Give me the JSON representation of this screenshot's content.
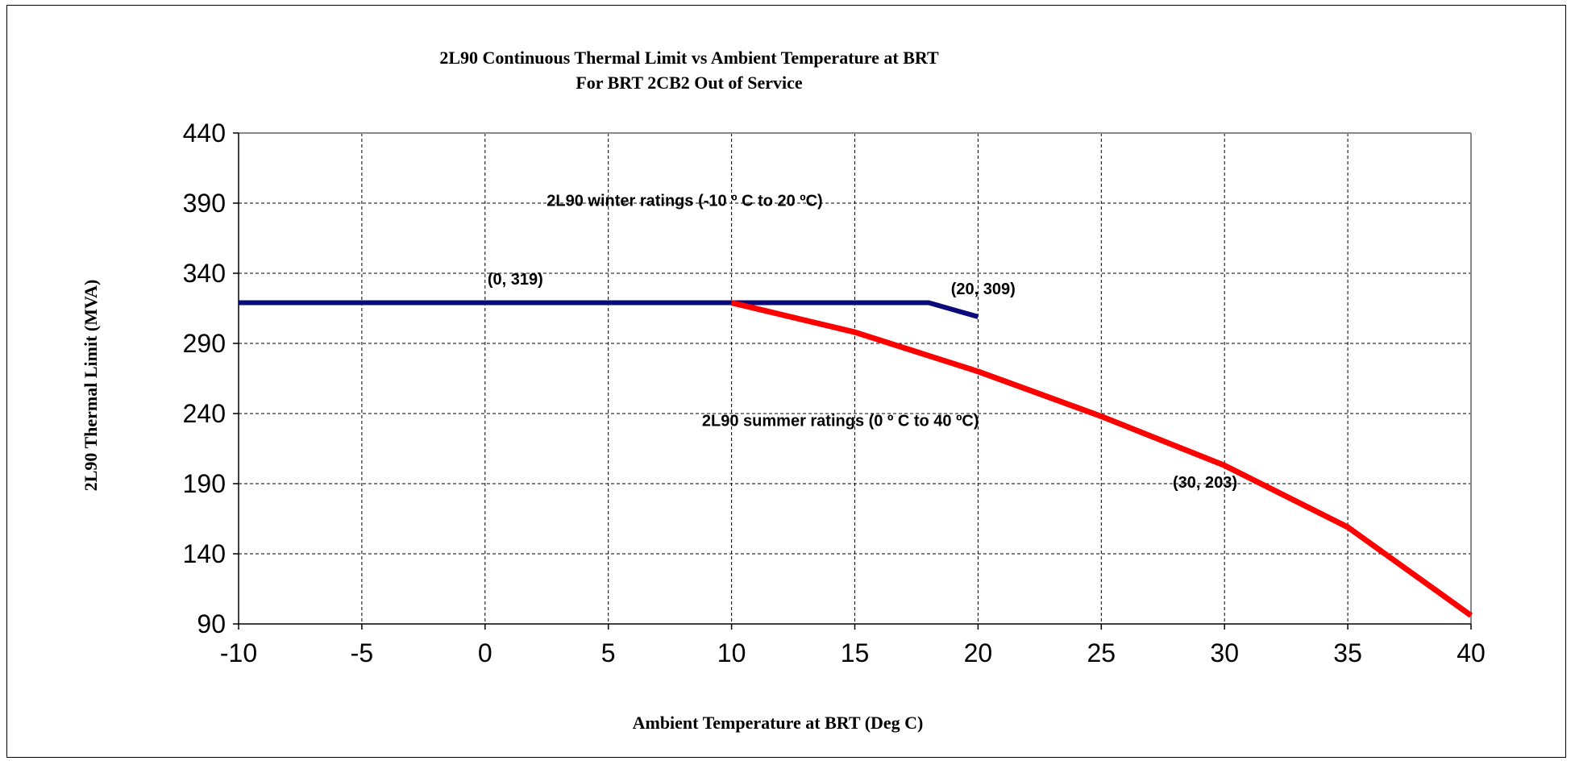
{
  "chart_data": {
    "type": "line",
    "title": "2L90 Continuous Thermal Limit vs Ambient Temperature at BRT",
    "subtitle": "For BRT 2CB2 Out of Service",
    "xlabel": "Ambient  Temperature  at BRT (Deg C)",
    "ylabel": "2L90  Thermal  Limit  (MVA)",
    "xlim": [
      -10,
      40
    ],
    "ylim": [
      90,
      440
    ],
    "xticks": [
      -10,
      -5,
      0,
      5,
      10,
      15,
      20,
      25,
      30,
      35,
      40
    ],
    "yticks": [
      90,
      140,
      190,
      240,
      290,
      340,
      390,
      440
    ],
    "grid": true,
    "series": [
      {
        "color": "#0a0a7a",
        "points": [
          [
            -10,
            319
          ],
          [
            18,
            319
          ],
          [
            20,
            309
          ]
        ]
      },
      {
        "color": "#ff0000",
        "points": [
          [
            10,
            319
          ],
          [
            15,
            298
          ],
          [
            20,
            270
          ],
          [
            25,
            238
          ],
          [
            30,
            203
          ],
          [
            35,
            159
          ],
          [
            40,
            96
          ]
        ]
      }
    ],
    "annotations": [
      {
        "text": "2L90 winter ratings (-10 º C to 20 ºC)",
        "x": 2.5,
        "y": 388
      },
      {
        "text": "(0, 319)",
        "x": 0.1,
        "y": 332
      },
      {
        "text": "(20,  309)",
        "x": 18.9,
        "y": 325
      },
      {
        "text": "2L90 summer ratings (0 º C to 40 ºC)",
        "x": 8.8,
        "y": 231
      },
      {
        "text": "(30,  203)",
        "x": 27.9,
        "y": 187
      }
    ]
  }
}
